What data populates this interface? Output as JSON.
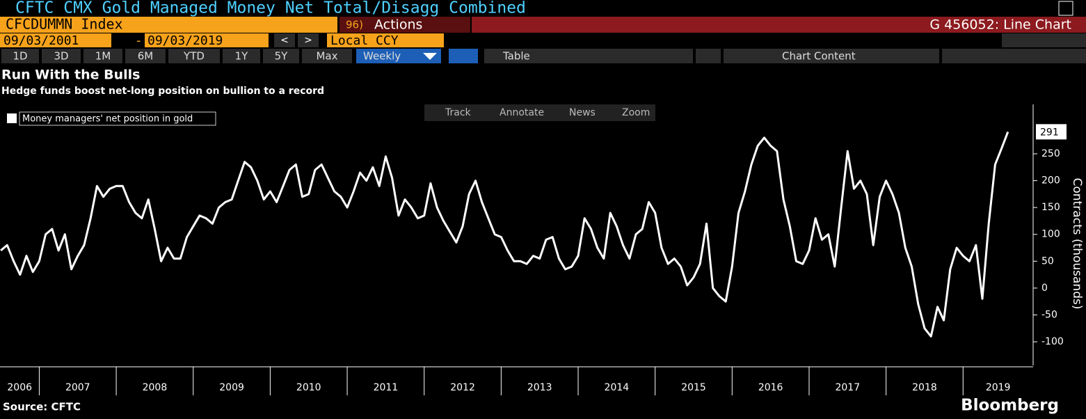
{
  "ui": {
    "window_title": "CFTC CMX Gold Managed Money Net Total/Disagg Combined",
    "ticker": "CFCDUMMN Index",
    "actions_num": "96)",
    "actions": "Actions",
    "chart_id": "G 456052: Line Chart",
    "start_date": "09/03/2001",
    "date_sep": "-",
    "end_date": "09/03/2019",
    "prev": "<",
    "next": ">",
    "currency": "Local CCY",
    "periods": [
      "1D",
      "3D",
      "1M",
      "6M",
      "YTD",
      "1Y",
      "5Y",
      "Max"
    ],
    "frequency": "Weekly",
    "table": "Table",
    "chart_content": "Chart Content",
    "tools": [
      "Track",
      "Annotate",
      "News",
      "Zoom"
    ],
    "source": "Source: CFTC",
    "brand": "Bloomberg"
  },
  "chart_data": {
    "type": "line",
    "title": "Run With the Bulls",
    "subtitle": "Hedge funds boost net-long position on bullion to a record",
    "y_label": "Contracts (thousands)",
    "legend": "top-left",
    "grid": false,
    "xlim": [
      2006.49,
      2019.91
    ],
    "ylim": [
      -144,
      342
    ],
    "yticks": [
      -100,
      -50,
      0,
      50,
      100,
      150,
      200,
      250
    ],
    "xticks": [
      {
        "value": 2006,
        "label": "2006"
      },
      {
        "value": 2007,
        "label": "2007"
      },
      {
        "value": 2008,
        "label": "2008"
      },
      {
        "value": 2009,
        "label": "2009"
      },
      {
        "value": 2010,
        "label": "2010"
      },
      {
        "value": 2011,
        "label": "2011"
      },
      {
        "value": 2012,
        "label": "2012"
      },
      {
        "value": 2013,
        "label": "2013"
      },
      {
        "value": 2014,
        "label": "2014"
      },
      {
        "value": 2015,
        "label": "2015"
      },
      {
        "value": 2016,
        "label": "2016"
      },
      {
        "value": 2017,
        "label": "2017"
      },
      {
        "value": 2018,
        "label": "2018"
      },
      {
        "value": 2019,
        "label": "2019"
      }
    ],
    "x": [
      2006.5,
      2006.583,
      2006.667,
      2006.75,
      2006.833,
      2006.917,
      2007,
      2007.083,
      2007.167,
      2007.25,
      2007.333,
      2007.417,
      2007.5,
      2007.583,
      2007.667,
      2007.75,
      2007.833,
      2007.917,
      2008,
      2008.083,
      2008.167,
      2008.25,
      2008.333,
      2008.417,
      2008.5,
      2008.583,
      2008.667,
      2008.75,
      2008.833,
      2008.917,
      2009,
      2009.083,
      2009.167,
      2009.25,
      2009.333,
      2009.417,
      2009.5,
      2009.583,
      2009.667,
      2009.75,
      2009.833,
      2009.917,
      2010,
      2010.083,
      2010.167,
      2010.25,
      2010.333,
      2010.417,
      2010.5,
      2010.583,
      2010.667,
      2010.75,
      2010.833,
      2010.917,
      2011,
      2011.083,
      2011.167,
      2011.25,
      2011.333,
      2011.417,
      2011.5,
      2011.583,
      2011.667,
      2011.75,
      2011.833,
      2011.917,
      2012,
      2012.083,
      2012.167,
      2012.25,
      2012.333,
      2012.417,
      2012.5,
      2012.583,
      2012.667,
      2012.75,
      2012.833,
      2012.917,
      2013,
      2013.083,
      2013.167,
      2013.25,
      2013.333,
      2013.417,
      2013.5,
      2013.583,
      2013.667,
      2013.75,
      2013.833,
      2013.917,
      2014,
      2014.083,
      2014.167,
      2014.25,
      2014.333,
      2014.417,
      2014.5,
      2014.583,
      2014.667,
      2014.75,
      2014.833,
      2014.917,
      2015,
      2015.083,
      2015.167,
      2015.25,
      2015.333,
      2015.417,
      2015.5,
      2015.583,
      2015.667,
      2015.75,
      2015.833,
      2015.917,
      2016,
      2016.083,
      2016.167,
      2016.25,
      2016.333,
      2016.417,
      2016.5,
      2016.583,
      2016.667,
      2016.75,
      2016.833,
      2016.917,
      2017,
      2017.083,
      2017.167,
      2017.25,
      2017.333,
      2017.417,
      2017.5,
      2017.583,
      2017.667,
      2017.75,
      2017.833,
      2017.917,
      2018,
      2018.083,
      2018.167,
      2018.25,
      2018.333,
      2018.417,
      2018.5,
      2018.583,
      2018.667,
      2018.75,
      2018.833,
      2018.917,
      2019,
      2019.083,
      2019.167,
      2019.25,
      2019.333,
      2019.417,
      2019.5,
      2019.583
    ],
    "series": [
      {
        "name": "Money managers' net position in gold",
        "color": "#ffffff",
        "values": [
          70,
          80,
          50,
          25,
          60,
          30,
          50,
          100,
          110,
          70,
          100,
          35,
          60,
          80,
          130,
          190,
          170,
          185,
          190,
          190,
          160,
          140,
          130,
          165,
          110,
          50,
          75,
          55,
          55,
          95,
          115,
          135,
          130,
          120,
          150,
          160,
          165,
          200,
          235,
          225,
          200,
          165,
          180,
          160,
          190,
          220,
          230,
          170,
          175,
          220,
          230,
          205,
          180,
          170,
          150,
          180,
          215,
          200,
          225,
          190,
          245,
          205,
          135,
          165,
          150,
          130,
          135,
          195,
          150,
          125,
          105,
          85,
          115,
          175,
          200,
          160,
          130,
          100,
          95,
          70,
          50,
          50,
          45,
          60,
          55,
          90,
          95,
          55,
          35,
          40,
          60,
          130,
          110,
          75,
          55,
          140,
          115,
          80,
          55,
          100,
          110,
          160,
          140,
          75,
          45,
          55,
          40,
          5,
          20,
          45,
          120,
          0,
          -15,
          -25,
          40,
          140,
          180,
          230,
          265,
          280,
          265,
          255,
          165,
          115,
          50,
          45,
          70,
          130,
          90,
          100,
          40,
          150,
          255,
          185,
          200,
          175,
          80,
          170,
          200,
          175,
          140,
          75,
          40,
          -30,
          -75,
          -90,
          -35,
          -60,
          35,
          75,
          60,
          50,
          80,
          -20,
          120,
          230,
          260,
          291
        ]
      }
    ]
  }
}
